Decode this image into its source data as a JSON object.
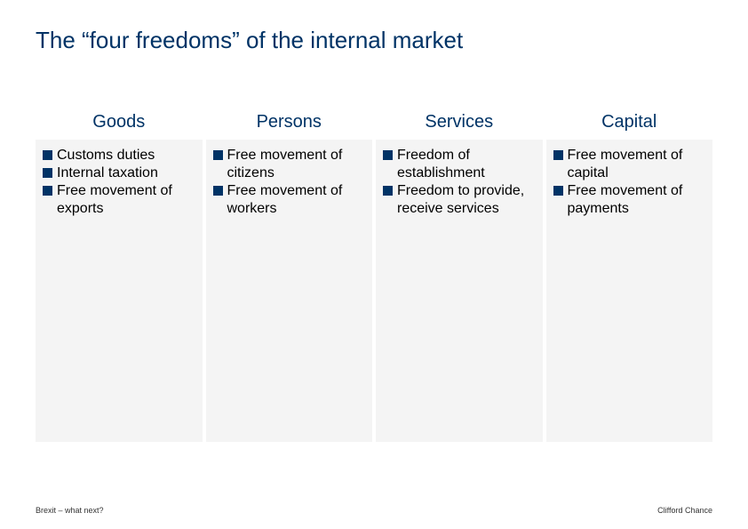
{
  "title": "The “four freedoms” of the internal market",
  "columns": [
    {
      "header": "Goods",
      "items": [
        "Customs duties",
        "Internal taxation",
        "Free movement of exports"
      ]
    },
    {
      "header": "Persons",
      "items": [
        "Free movement of citizens",
        "Free movement of workers"
      ]
    },
    {
      "header": "Services",
      "items": [
        "Freedom of establishment",
        "Freedom to provide, receive services"
      ]
    },
    {
      "header": "Capital",
      "items": [
        "Free movement of capital",
        "Free movement of payments"
      ]
    }
  ],
  "footer_left": "Brexit – what next?",
  "footer_right": "Clifford Chance",
  "style": {
    "title_color": "#003366",
    "header_color": "#003366",
    "bullet_color": "#003366",
    "body_bg": "#f4f4f4",
    "page_bg": "#ffffff",
    "title_fontsize": 26,
    "header_fontsize": 20,
    "item_fontsize": 16,
    "footer_fontsize": 9
  }
}
